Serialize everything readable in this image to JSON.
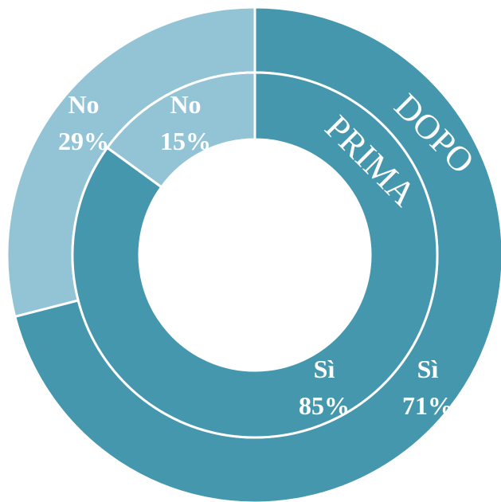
{
  "chart_data": {
    "type": "pie",
    "subtype": "nested-donut",
    "colors": {
      "yes": "#4597ae",
      "no": "#93c4d6",
      "separator": "#ffffff"
    },
    "series": [
      {
        "name": "DOPO",
        "ring": "outer",
        "categories": [
          "Sì",
          "No"
        ],
        "values": [
          71,
          29
        ],
        "labels": [
          "71%",
          "29%"
        ]
      },
      {
        "name": "PRIMA",
        "ring": "inner",
        "categories": [
          "Sì",
          "No"
        ],
        "values": [
          85,
          15
        ],
        "labels": [
          "85%",
          "15%"
        ]
      }
    ]
  }
}
